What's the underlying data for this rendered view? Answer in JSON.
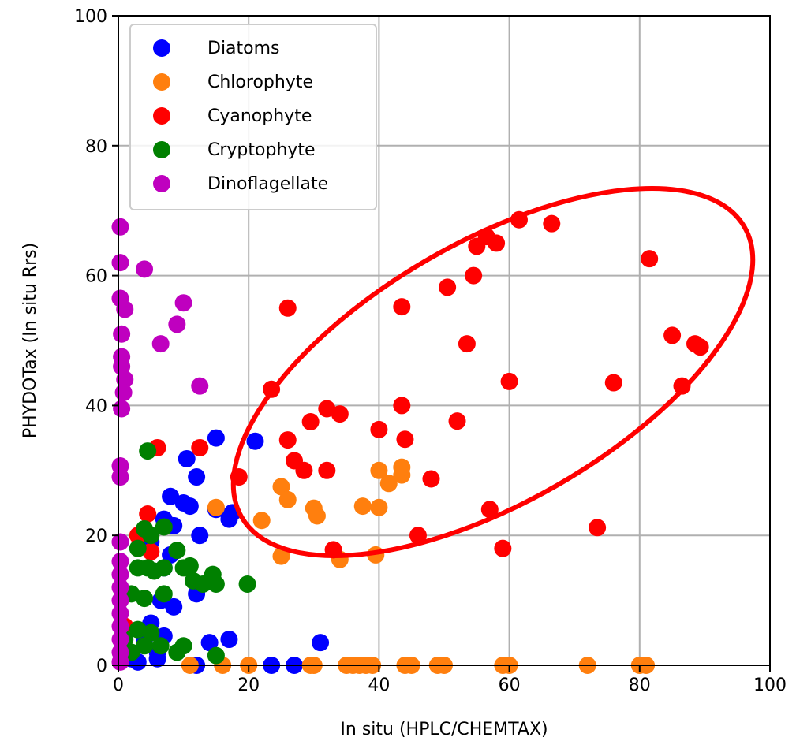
{
  "chart_data": {
    "type": "scatter",
    "xlabel": "In situ (HPLC/CHEMTAX)",
    "ylabel": "PHYDOTax (In situ Rrs)",
    "xlim": [
      0,
      100
    ],
    "ylim": [
      0,
      100
    ],
    "xticks": [
      "0",
      "20",
      "40",
      "60",
      "80",
      "100"
    ],
    "yticks": [
      "0",
      "20",
      "40",
      "60",
      "80",
      "100"
    ],
    "grid": true,
    "legend_position": "top-left",
    "series": [
      {
        "name": "Diatoms",
        "color": "#0000ff",
        "points": [
          [
            15,
            35
          ],
          [
            21,
            34.5
          ],
          [
            10.5,
            31.8
          ],
          [
            12,
            29
          ],
          [
            8,
            26
          ],
          [
            10,
            25
          ],
          [
            11,
            24.5
          ],
          [
            15,
            24
          ],
          [
            17.5,
            23.5
          ],
          [
            17,
            22.5
          ],
          [
            7,
            22.5
          ],
          [
            8.5,
            21.5
          ],
          [
            12.5,
            20
          ],
          [
            5,
            19
          ],
          [
            8,
            17
          ],
          [
            7,
            15
          ],
          [
            6.5,
            10
          ],
          [
            8.5,
            9
          ],
          [
            12,
            11
          ],
          [
            14,
            3.5
          ],
          [
            17,
            4
          ],
          [
            31,
            3.5
          ],
          [
            5,
            6.5
          ],
          [
            4,
            4
          ],
          [
            6,
            2
          ],
          [
            7,
            4.5
          ],
          [
            3,
            0.5
          ],
          [
            23.5,
            0
          ],
          [
            27,
            0
          ],
          [
            6,
            1
          ],
          [
            2,
            1
          ],
          [
            12,
            0
          ]
        ]
      },
      {
        "name": "Chlorophyte",
        "color": "#ff7f0e",
        "points": [
          [
            15,
            24.3
          ],
          [
            22,
            22.3
          ],
          [
            25,
            27.5
          ],
          [
            26,
            25.5
          ],
          [
            30,
            24.2
          ],
          [
            30.5,
            23
          ],
          [
            25,
            16.8
          ],
          [
            34,
            16.3
          ],
          [
            37.5,
            24.5
          ],
          [
            40,
            24.3
          ],
          [
            39.5,
            17
          ],
          [
            40,
            30
          ],
          [
            41.5,
            28
          ],
          [
            43.5,
            29.3
          ],
          [
            43.5,
            30.5
          ],
          [
            29.5,
            0
          ],
          [
            30,
            0
          ],
          [
            35,
            0
          ],
          [
            36,
            0
          ],
          [
            37,
            0
          ],
          [
            38,
            0
          ],
          [
            39,
            0
          ],
          [
            44,
            0
          ],
          [
            45,
            0
          ],
          [
            49,
            0
          ],
          [
            50,
            0
          ],
          [
            59,
            0
          ],
          [
            60,
            0
          ],
          [
            72,
            0
          ],
          [
            80,
            0
          ],
          [
            81,
            0
          ],
          [
            11,
            0
          ],
          [
            16,
            0
          ],
          [
            20,
            0
          ]
        ]
      },
      {
        "name": "Cyanophyte",
        "color": "#ff0000",
        "points": [
          [
            6,
            33.5
          ],
          [
            12.5,
            33.5
          ],
          [
            18.5,
            29
          ],
          [
            23.5,
            42.5
          ],
          [
            26,
            34.7
          ],
          [
            26,
            55
          ],
          [
            27,
            31.5
          ],
          [
            28.5,
            30
          ],
          [
            29.5,
            37.5
          ],
          [
            32,
            39.5
          ],
          [
            32,
            30
          ],
          [
            33,
            17.8
          ],
          [
            34,
            38.7
          ],
          [
            40,
            36.3
          ],
          [
            43.5,
            40
          ],
          [
            44,
            34.8
          ],
          [
            43.5,
            55.2
          ],
          [
            46,
            20
          ],
          [
            48,
            28.7
          ],
          [
            50.5,
            58.2
          ],
          [
            52,
            37.6
          ],
          [
            53.5,
            49.5
          ],
          [
            54.5,
            60
          ],
          [
            55,
            64.5
          ],
          [
            56.5,
            66
          ],
          [
            58,
            65
          ],
          [
            57,
            24
          ],
          [
            59,
            18
          ],
          [
            60,
            43.7
          ],
          [
            61.5,
            68.6
          ],
          [
            66.5,
            68
          ],
          [
            73.5,
            21.2
          ],
          [
            76,
            43.5
          ],
          [
            81.5,
            62.6
          ],
          [
            85,
            50.8
          ],
          [
            86.5,
            43
          ],
          [
            88.5,
            49.5
          ],
          [
            89.3,
            49
          ],
          [
            4.5,
            23.3
          ],
          [
            3,
            20
          ],
          [
            5,
            17.5
          ],
          [
            1,
            6
          ]
        ]
      },
      {
        "name": "Cryptophyte",
        "color": "#008000",
        "points": [
          [
            4.5,
            33
          ],
          [
            4,
            21
          ],
          [
            7,
            21.3
          ],
          [
            5,
            20
          ],
          [
            3,
            18
          ],
          [
            9,
            17.7
          ],
          [
            3,
            15
          ],
          [
            4.5,
            15
          ],
          [
            5.5,
            14.5
          ],
          [
            7,
            15
          ],
          [
            10,
            15
          ],
          [
            11,
            15.3
          ],
          [
            14.5,
            14
          ],
          [
            15,
            12.5
          ],
          [
            13,
            12.5
          ],
          [
            11.5,
            13
          ],
          [
            19.8,
            12.5
          ],
          [
            2,
            11
          ],
          [
            4,
            10.3
          ],
          [
            7,
            11
          ],
          [
            3,
            5.5
          ],
          [
            5,
            5
          ],
          [
            6.5,
            3
          ],
          [
            4,
            3
          ],
          [
            10,
            3
          ],
          [
            9,
            2
          ],
          [
            1,
            4
          ],
          [
            15,
            1.5
          ],
          [
            2,
            2
          ]
        ]
      },
      {
        "name": "Dinoflagellate",
        "color": "#bf00bf",
        "points": [
          [
            0.3,
            67.5
          ],
          [
            0.3,
            62
          ],
          [
            4,
            61
          ],
          [
            0.3,
            56.5
          ],
          [
            1,
            54.8
          ],
          [
            10,
            55.8
          ],
          [
            9,
            52.5
          ],
          [
            6.5,
            49.5
          ],
          [
            0.5,
            51
          ],
          [
            0.5,
            47.5
          ],
          [
            0.5,
            46
          ],
          [
            1,
            44
          ],
          [
            0.8,
            42
          ],
          [
            0.5,
            39.5
          ],
          [
            12.5,
            43
          ],
          [
            0.3,
            30.7
          ],
          [
            0.3,
            29
          ],
          [
            0.3,
            19
          ],
          [
            0.3,
            16
          ],
          [
            0.3,
            14
          ],
          [
            0.3,
            12
          ],
          [
            0.3,
            10
          ],
          [
            0.3,
            8
          ],
          [
            0.3,
            6
          ],
          [
            0.3,
            4
          ],
          [
            0.3,
            2
          ],
          [
            0.3,
            0.5
          ]
        ]
      }
    ]
  }
}
